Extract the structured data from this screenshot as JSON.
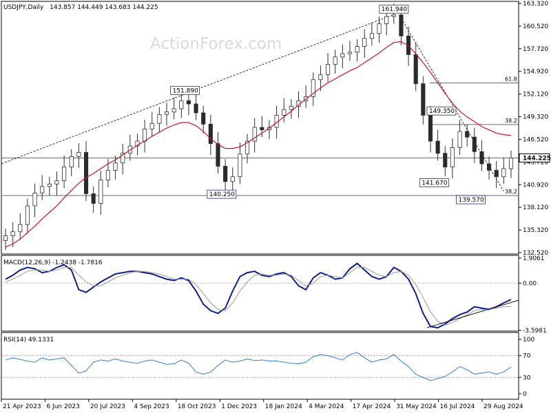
{
  "header": {
    "symbol": "USDJPY,Daily",
    "ohlc": "143.857 144.449 143.683 144.225"
  },
  "watermark": "ActionForex.com",
  "colors": {
    "price": "#2b2b2b",
    "sma": "#d0121b",
    "macd_main": "#0b1d8a",
    "macd_signal": "#9a9a9a",
    "rsi": "#1e6fd9",
    "grid_level": "#555555",
    "watermark": "#d8d8d8"
  },
  "chart_data": [
    {
      "type": "candlestick",
      "panel": "main",
      "ylim": [
        132.52,
        163.32
      ],
      "y_ticks": [
        "163.320",
        "160.520",
        "157.720",
        "154.920",
        "152.120",
        "149.320",
        "146.520",
        "143.720",
        "140.920",
        "138.120",
        "135.320",
        "132.520"
      ],
      "current_price_label": "144.225",
      "close": [
        134.6,
        135.1,
        136.0,
        138.3,
        139.9,
        140.7,
        141.0,
        141.4,
        143.1,
        144.4,
        144.9,
        139.8,
        138.6,
        141.5,
        142.7,
        143.6,
        144.8,
        145.7,
        146.3,
        147.8,
        148.5,
        149.6,
        149.9,
        150.3,
        151.3,
        150.9,
        149.8,
        148.4,
        146.0,
        143.2,
        141.3,
        141.9,
        144.7,
        146.3,
        148.0,
        147.7,
        148.0,
        149.5,
        150.2,
        150.6,
        151.3,
        151.8,
        153.9,
        154.5,
        155.8,
        156.7,
        157.1,
        157.3,
        158.0,
        159.0,
        159.6,
        160.8,
        161.7,
        161.9,
        159.3,
        157.0,
        153.4,
        149.5,
        146.3,
        144.8,
        143.1,
        145.5,
        147.5,
        146.8,
        145.0,
        143.5,
        142.7,
        141.9,
        142.9,
        144.225
      ],
      "sma": [
        133.2,
        133.6,
        134.2,
        135.0,
        135.8,
        136.7,
        137.5,
        138.3,
        139.3,
        140.2,
        141.1,
        141.8,
        142.3,
        142.9,
        143.5,
        144.0,
        144.6,
        145.2,
        145.8,
        146.3,
        146.9,
        147.4,
        147.9,
        148.3,
        148.6,
        148.6,
        148.2,
        147.5,
        146.6,
        145.9,
        145.4,
        145.4,
        145.6,
        146.1,
        146.7,
        147.3,
        147.9,
        148.6,
        149.3,
        150.0,
        150.8,
        151.5,
        152.2,
        152.9,
        153.5,
        154.0,
        154.5,
        155.0,
        155.4,
        156.0,
        156.6,
        157.2,
        157.9,
        158.5,
        158.6,
        158.1,
        157.1,
        156.0,
        154.8,
        153.5,
        152.2,
        151.0,
        150.0,
        149.3,
        148.7,
        148.1,
        147.7,
        147.3,
        147.1,
        147.0
      ],
      "horizontal_levels": [
        {
          "label": "",
          "value": 144.225
        },
        {
          "label": "139.570",
          "value": 139.57
        },
        {
          "label": "61.8",
          "value": 153.5
        },
        {
          "label": "38.2",
          "value": 148.35
        },
        {
          "label": "38.2",
          "value": 139.57
        }
      ],
      "annotations": [
        {
          "label": "151.890",
          "value": 151.89
        },
        {
          "label": "140.250",
          "value": 140.25
        },
        {
          "label": "161.940",
          "value": 161.94
        },
        {
          "label": "149.350",
          "value": 149.35
        },
        {
          "label": "141.670",
          "value": 141.67
        },
        {
          "label": "139.570",
          "value": 139.57
        }
      ]
    },
    {
      "type": "line",
      "panel": "macd",
      "title": "MACD(12,26,9) -1.2438 -1.7816",
      "ylim": [
        -3.5981,
        1.9061
      ],
      "y_ticks": [
        "1.9061",
        "0.00",
        "-3.5981"
      ],
      "series": [
        {
          "name": "main",
          "values": [
            0.3,
            0.6,
            1.0,
            1.2,
            1.1,
            0.8,
            0.9,
            1.2,
            1.4,
            1.0,
            -0.5,
            -0.7,
            -0.3,
            0.1,
            0.4,
            0.7,
            0.8,
            0.9,
            0.9,
            0.8,
            0.7,
            0.5,
            0.3,
            0.2,
            0.4,
            0.2,
            -0.6,
            -1.6,
            -2.1,
            -2.3,
            -1.9,
            -0.6,
            0.5,
            0.8,
            0.9,
            0.6,
            0.5,
            0.7,
            0.8,
            0.5,
            -0.2,
            -0.5,
            0.4,
            0.8,
            0.6,
            0.3,
            0.4,
            1.1,
            1.5,
            1.0,
            0.5,
            0.3,
            0.5,
            1.2,
            0.9,
            0.3,
            -0.8,
            -2.3,
            -3.3,
            -3.4,
            -3.1,
            -2.7,
            -2.4,
            -2.2,
            -1.8,
            -1.9,
            -2.0,
            -1.8,
            -1.5,
            -1.2438
          ]
        },
        {
          "name": "signal",
          "values": [
            0.1,
            0.3,
            0.6,
            0.9,
            1.0,
            1.0,
            0.9,
            1.0,
            1.2,
            1.2,
            0.6,
            0.1,
            -0.2,
            -0.2,
            0.1,
            0.4,
            0.6,
            0.8,
            0.9,
            0.9,
            0.8,
            0.7,
            0.5,
            0.3,
            0.3,
            0.3,
            -0.1,
            -0.8,
            -1.5,
            -2.0,
            -2.1,
            -1.5,
            -0.6,
            0.1,
            0.6,
            0.7,
            0.6,
            0.6,
            0.7,
            0.6,
            0.2,
            -0.2,
            0.0,
            0.5,
            0.6,
            0.5,
            0.4,
            0.8,
            1.2,
            1.2,
            0.9,
            0.6,
            0.5,
            0.8,
            0.9,
            0.6,
            -0.1,
            -1.1,
            -2.2,
            -2.9,
            -3.2,
            -3.0,
            -2.7,
            -2.4,
            -2.1,
            -2.0,
            -2.0,
            -1.9,
            -1.8,
            -1.7816
          ]
        }
      ]
    },
    {
      "type": "line",
      "panel": "rsi",
      "title": "RSI(14) 49.1331",
      "ylim": [
        0,
        100
      ],
      "y_ticks": [
        "100",
        "70",
        "30",
        "0"
      ],
      "series": [
        {
          "name": "RSI",
          "values": [
            62,
            66,
            63,
            60,
            58,
            66,
            62,
            64,
            66,
            52,
            38,
            42,
            58,
            62,
            60,
            64,
            60,
            58,
            56,
            60,
            62,
            58,
            54,
            55,
            62,
            56,
            40,
            36,
            40,
            52,
            62,
            58,
            60,
            64,
            61,
            62,
            60,
            60,
            58,
            56,
            55,
            58,
            68,
            72,
            70,
            66,
            62,
            72,
            76,
            66,
            58,
            62,
            64,
            72,
            60,
            50,
            36,
            30,
            24,
            28,
            32,
            40,
            50,
            44,
            36,
            38,
            40,
            36,
            40,
            49.1331
          ]
        }
      ]
    }
  ],
  "x_axis": [
    "21 Apr 2023",
    "6 Jun 2023",
    "20 Jul 2023",
    "4 Sep 2023",
    "18 Oct 2023",
    "1 Dec 2023",
    "18 Jan 2024",
    "4 Mar 2024",
    "17 Apr 2024",
    "31 May 2024",
    "16 Jul 2024",
    "29 Aug 2024"
  ]
}
